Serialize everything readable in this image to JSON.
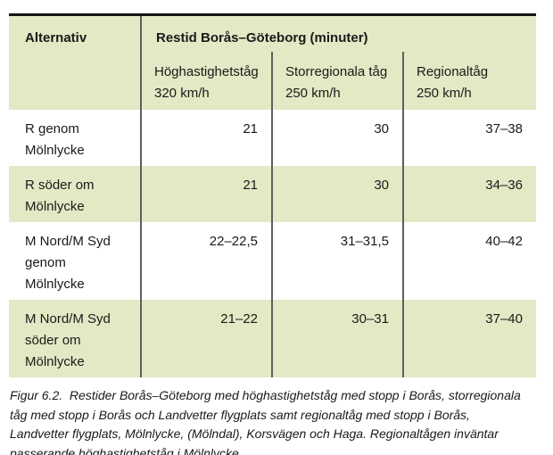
{
  "table": {
    "header": {
      "col1": "Alternativ",
      "span_title": "Restid Borås–Göteborg (minuter)",
      "subcolumns": [
        {
          "name": "Höghastighetståg",
          "speed": "320 km/h"
        },
        {
          "name": "Storregionala tåg",
          "speed": "250 km/h"
        },
        {
          "name": "Regionaltåg",
          "speed": "250 km/h"
        }
      ]
    },
    "rows": [
      {
        "label": "R genom Mölnlycke",
        "label_lines": [
          "R genom",
          "Mölnlycke"
        ],
        "values": [
          "21",
          "30",
          "37–38"
        ]
      },
      {
        "label": "R söder om Mölnlycke",
        "label_lines": [
          "R söder om",
          "Mölnlycke"
        ],
        "values": [
          "21",
          "30",
          "34–36"
        ]
      },
      {
        "label": "M Nord/M Syd genom Mölnlycke",
        "label_lines": [
          "M Nord/M Syd",
          "genom",
          "Mölnlycke"
        ],
        "values": [
          "22–22,5",
          "31–31,5",
          "40–42"
        ]
      },
      {
        "label": "M Nord/M Syd söder om Mölnlycke",
        "label_lines": [
          "M Nord/M Syd",
          "söder om",
          "Mölnlycke"
        ],
        "values": [
          "21–22",
          "30–31",
          "37–40"
        ]
      }
    ]
  },
  "caption": {
    "lines": [
      "Figur 6.2.  Restider Borås–Göteborg med höghastighetståg med stopp i Borås, storregionala",
      "tåg med stopp i Borås och Landvetter flygplats samt regionaltåg med stopp i Borås,",
      "Landvetter flygplats, Mölnlycke, (Mölndal), Korsvägen och Haga. Regionaltågen inväntar",
      "passerande höghastighetståg i Mölnlycke."
    ]
  },
  "colors": {
    "header_bg": "#e4e8c4",
    "row_even_bg": "#e4e8c4",
    "row_odd_bg": "#ffffff",
    "divider": "#5f5f5f",
    "top_border": "#161616",
    "text": "#1a1a1a"
  }
}
